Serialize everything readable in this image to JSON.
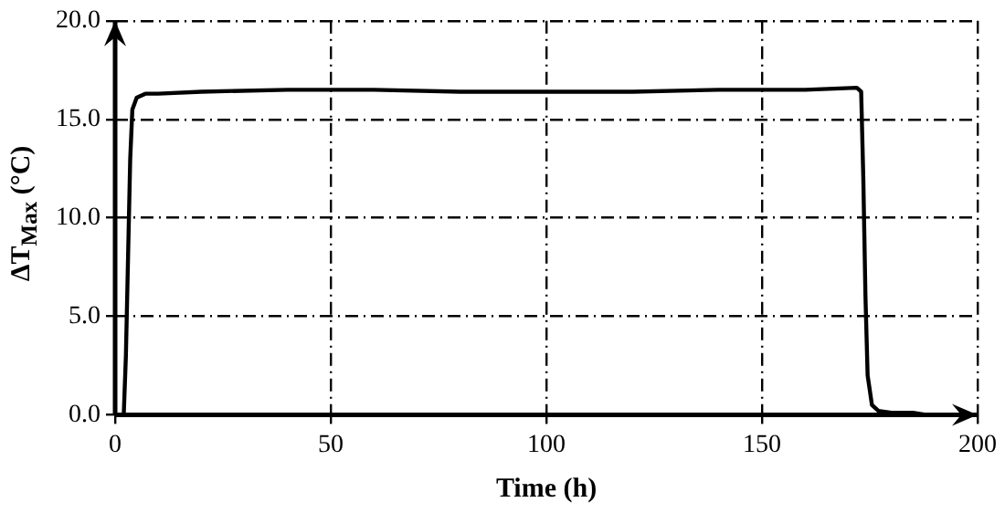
{
  "chart_data": {
    "type": "line",
    "xlabel": "Time (h)",
    "ylabel": "ΔT$_{Max}$ (°C)",
    "x": [
      0,
      2,
      2.5,
      3,
      3.5,
      4,
      5,
      7,
      10,
      20,
      40,
      60,
      80,
      100,
      120,
      140,
      160,
      172,
      173,
      173.5,
      174,
      174.5,
      175.5,
      177,
      180,
      185,
      188
    ],
    "series": [
      {
        "color": "#000000",
        "values": [
          0,
          0,
          3,
          8,
          13,
          15.5,
          16.1,
          16.3,
          16.3,
          16.4,
          16.5,
          16.5,
          16.4,
          16.4,
          16.4,
          16.5,
          16.5,
          16.6,
          16.4,
          12,
          6,
          2,
          0.5,
          0.2,
          0.1,
          0.1,
          0.0
        ]
      }
    ],
    "xlim": [
      0,
      200
    ],
    "xticks": [
      0,
      50,
      100,
      150,
      200
    ],
    "ylim": [
      0,
      20
    ],
    "yticks": [
      {
        "value": 0,
        "label": "0.0"
      },
      {
        "value": 5,
        "label": "5.0"
      },
      {
        "value": 10,
        "label": "10.0"
      },
      {
        "value": 15,
        "label": "15.0"
      },
      {
        "value": 20,
        "label": "20.0"
      }
    ],
    "grid": true,
    "marker": "none",
    "line_style": "solid",
    "legend": false
  }
}
